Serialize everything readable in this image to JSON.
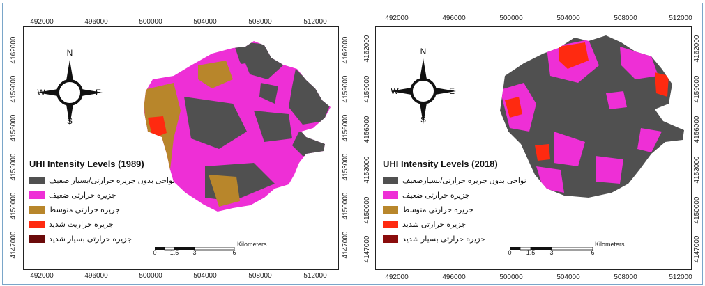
{
  "colors": {
    "none_weak": "#505050",
    "weak": "#ee2fd6",
    "moderate": "#b8862b",
    "strong": "#ff2a10",
    "very_strong": "#6b0a0a"
  },
  "maps": [
    {
      "title": "UHI Intensity Levels  (1989)",
      "x_ticks": [
        "492000",
        "496000",
        "500000",
        "504000",
        "508000",
        "512000"
      ],
      "y_ticks": [
        "4162000",
        "4159000",
        "4156000",
        "4153000",
        "4150000",
        "4147000"
      ],
      "legend": [
        {
          "label": "نواحی بدون جزیره حرارتی/بسیار ضعیف",
          "color_key": "none_weak"
        },
        {
          "label": "جزیره حرارتی ضعیف",
          "color_key": "weak"
        },
        {
          "label": "جزیره حرارتی متوسط",
          "color_key": "moderate"
        },
        {
          "label": "جزیره حراریت شدید",
          "color_key": "strong"
        },
        {
          "label": "جزیره حرارتی بسیار شدید",
          "color_key": "very_strong"
        }
      ],
      "compass": {
        "n": "N",
        "s": "S",
        "e": "E",
        "w": "W"
      },
      "scale": {
        "unit": "Kilometers",
        "ticks": [
          "0",
          "1.5",
          "3",
          "6"
        ]
      }
    },
    {
      "title": "UHI Intensity Levels (2018)",
      "x_ticks": [
        "492000",
        "496000",
        "500000",
        "504000",
        "508000",
        "512000"
      ],
      "y_ticks": [
        "4162000",
        "4159000",
        "4156000",
        "4153000",
        "4150000",
        "4147000"
      ],
      "legend": [
        {
          "label": "نواحی بدون جزیره حرارتی/بسیارضعیف",
          "color_key": "none_weak"
        },
        {
          "label": "جزیره حرارتی ضعیف",
          "color_key": "weak"
        },
        {
          "label": "جزیره حرارتی متوسط",
          "color_key": "moderate"
        },
        {
          "label": "جزیره حرارتی شدید",
          "color_key": "strong"
        },
        {
          "label": "جزیره حرارتی بسیار شدید",
          "color_key": "very_strong"
        }
      ],
      "compass": {
        "n": "N",
        "s": "S",
        "e": "E",
        "w": "W"
      },
      "scale": {
        "unit": "Kilometers",
        "ticks": [
          "0",
          "1.5",
          "3",
          "6"
        ]
      }
    }
  ]
}
